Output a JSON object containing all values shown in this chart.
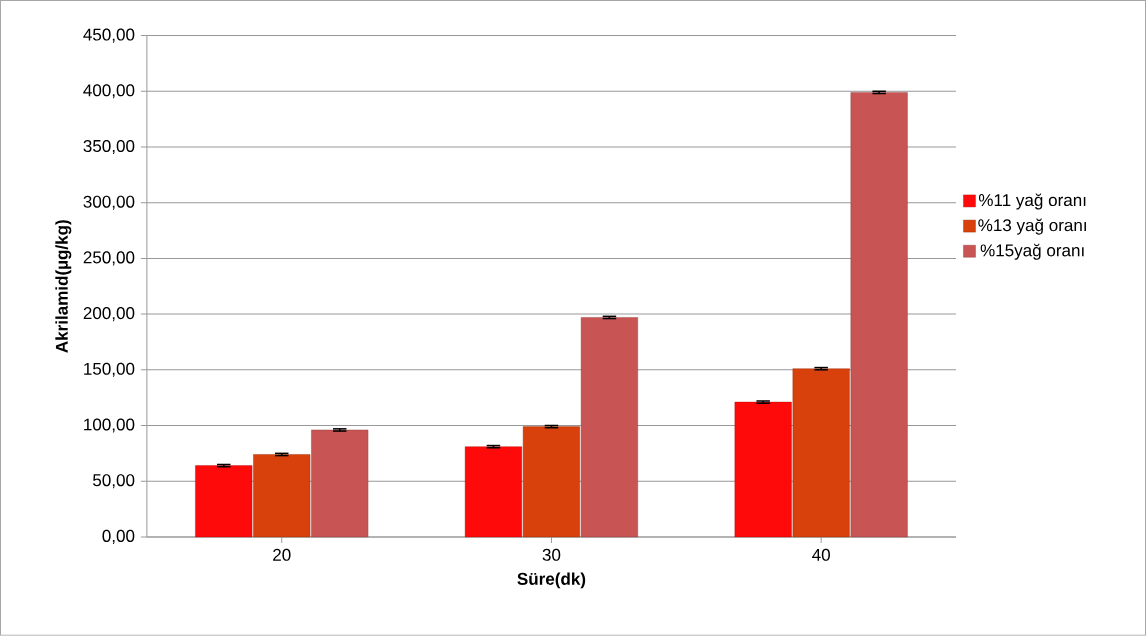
{
  "chart_data": {
    "type": "bar",
    "xlabel": "Süre(dk)",
    "ylabel": "Akrilamid(µg/kg)",
    "categories": [
      "20",
      "30",
      "40"
    ],
    "series": [
      {
        "name": "%11 yağ oranı",
        "color": "#ff0a0a",
        "values": [
          64,
          81,
          121
        ],
        "errors": [
          1,
          1,
          1
        ]
      },
      {
        "name": "%13 yağ oranı",
        "color": "#d8400c",
        "values": [
          74,
          99,
          151
        ],
        "errors": [
          1,
          1,
          1
        ]
      },
      {
        "name": "%15yağ oranı",
        "color": "#c85454",
        "values": [
          96,
          197,
          399
        ],
        "errors": [
          1,
          1,
          1
        ]
      }
    ],
    "ylim": [
      0,
      450
    ],
    "yticks": [
      {
        "value": 0,
        "label": "0,00"
      },
      {
        "value": 50,
        "label": "50,00"
      },
      {
        "value": 100,
        "label": "100,00"
      },
      {
        "value": 150,
        "label": "150,00"
      },
      {
        "value": 200,
        "label": "200,00"
      },
      {
        "value": 250,
        "label": "250,00"
      },
      {
        "value": 300,
        "label": "300,00"
      },
      {
        "value": 350,
        "label": "350,00"
      },
      {
        "value": 400,
        "label": "400,00"
      },
      {
        "value": 450,
        "label": "450,00"
      }
    ],
    "grid": "y",
    "legend": "right"
  }
}
